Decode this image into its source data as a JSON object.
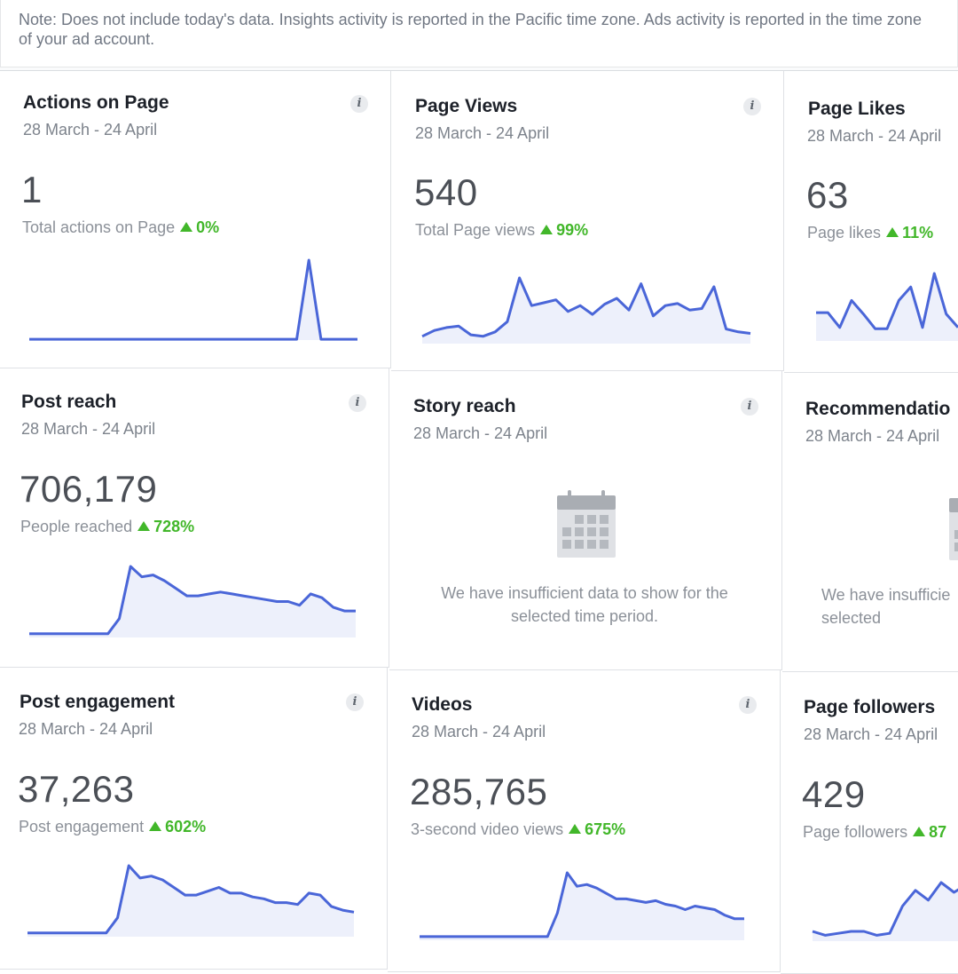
{
  "note": "Note: Does not include today's data. Insights activity is reported in the Pacific time zone. Ads activity is reported in the time zone of your ad account.",
  "info_icon_label": "i",
  "colors": {
    "accent": "#4a66d8",
    "fill": "#edf0fb",
    "positive": "#42b72a"
  },
  "cards": [
    {
      "title": "Actions on Page",
      "date": "28 March - 24 April",
      "value": "1",
      "metric": "Total actions on Page",
      "delta": "0%",
      "icon": "info-icon"
    },
    {
      "title": "Page Views",
      "date": "28 March - 24 April",
      "value": "540",
      "metric": "Total Page views",
      "delta": "99%",
      "icon": "info-icon"
    },
    {
      "title": "Page Likes",
      "date": "28 March - 24 April",
      "value": "63",
      "metric": "Page likes",
      "delta": "11%"
    },
    {
      "title": "Post reach",
      "date": "28 March - 24 April",
      "value": "706,179",
      "metric": "People reached",
      "delta": "728%",
      "icon": "info-icon"
    },
    {
      "title": "Story reach",
      "date": "28 March - 24 April",
      "empty_message": "We have insufficient data to show for the selected time period.",
      "icon": "calendar-icon"
    },
    {
      "title": "Recommendatio",
      "date": "28 March - 24 April",
      "empty_message": "We have insufficie selected",
      "icon": "calendar-icon"
    },
    {
      "title": "Post engagement",
      "date": "28 March - 24 April",
      "value": "37,263",
      "metric": "Post engagement",
      "delta": "602%",
      "icon": "info-icon"
    },
    {
      "title": "Videos",
      "date": "28 March - 24 April",
      "value": "285,765",
      "metric": "3-second video views",
      "delta": "675%",
      "icon": "info-icon"
    },
    {
      "title": "Page followers",
      "date": "28 March - 24 April",
      "value": "429",
      "metric": "Page followers",
      "delta": "87"
    }
  ],
  "sparklines": [
    [
      1,
      1,
      1,
      1,
      1,
      1,
      1,
      1,
      1,
      1,
      1,
      1,
      1,
      1,
      1,
      1,
      1,
      1,
      1,
      1,
      1,
      1,
      1,
      100,
      1,
      1,
      1,
      1
    ],
    [
      10,
      18,
      22,
      24,
      12,
      10,
      16,
      30,
      90,
      52,
      56,
      60,
      44,
      52,
      40,
      54,
      62,
      46,
      82,
      38,
      52,
      55,
      46,
      48,
      78,
      20,
      16,
      14
    ],
    [
      42,
      42,
      20,
      60,
      40,
      18,
      18,
      60,
      80,
      20,
      100,
      40,
      20
    ],
    [
      4,
      4,
      4,
      4,
      4,
      4,
      4,
      4,
      20,
      75,
      64,
      66,
      60,
      52,
      44,
      44,
      46,
      48,
      46,
      44,
      42,
      40,
      38,
      38,
      34,
      46,
      42,
      32,
      28,
      28
    ],
    [
      4,
      4,
      4,
      4,
      4,
      4,
      4,
      4,
      20,
      75,
      62,
      64,
      60,
      52,
      44,
      44,
      48,
      52,
      46,
      46,
      42,
      40,
      36,
      36,
      34,
      46,
      44,
      32,
      28,
      26
    ],
    [
      4,
      4,
      4,
      4,
      4,
      4,
      4,
      4,
      4,
      4,
      4,
      4,
      4,
      4,
      30,
      75,
      60,
      62,
      58,
      52,
      46,
      46,
      44,
      42,
      44,
      40,
      38,
      34,
      38,
      36,
      34,
      28,
      24,
      24
    ],
    [
      10,
      6,
      8,
      10,
      10,
      6,
      8,
      36,
      52,
      42,
      60,
      50,
      58
    ]
  ]
}
